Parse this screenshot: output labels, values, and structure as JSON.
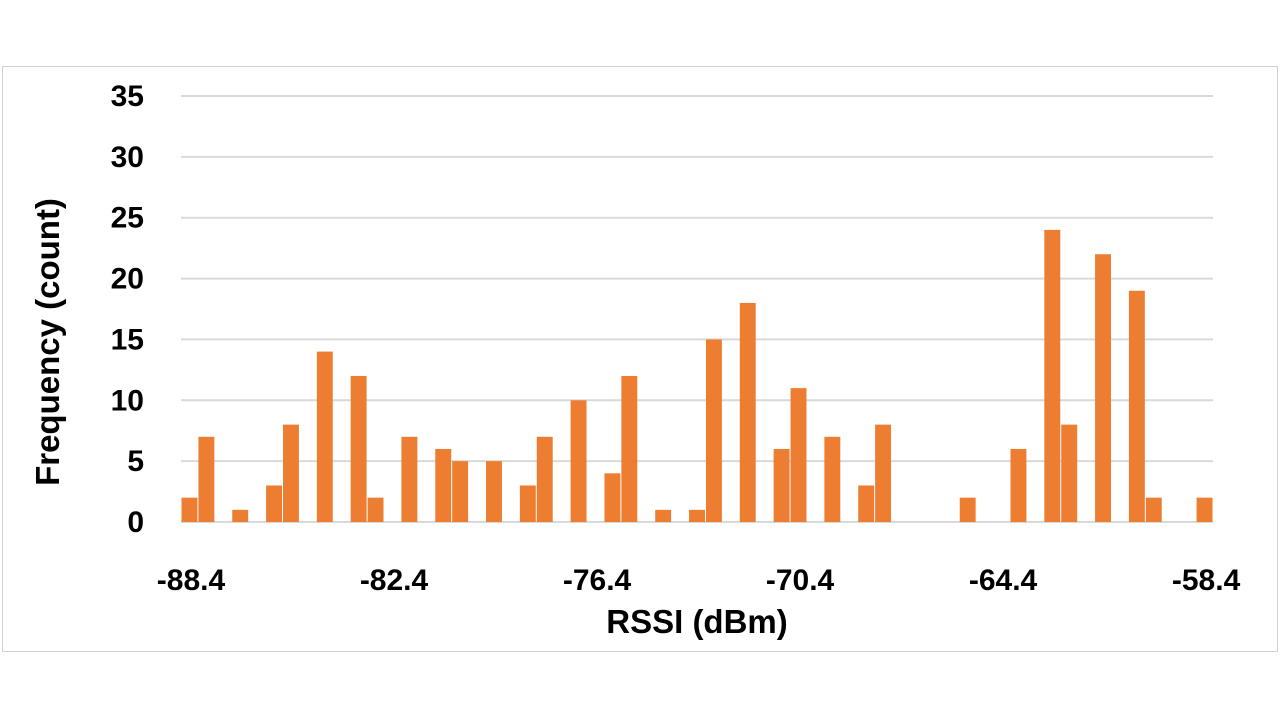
{
  "chart_data": {
    "type": "bar",
    "title": "",
    "xlabel": "RSSI (dBm)",
    "ylabel": "Frequency (count)",
    "ylim": [
      0,
      35
    ],
    "yticks": [
      0,
      5,
      10,
      15,
      20,
      25,
      30,
      35
    ],
    "grid": true,
    "color": "#ED7D31",
    "bin_start": -88.4,
    "bin_width": 0.5,
    "xtick_labels": [
      "-88.4",
      "-82.4",
      "-76.4",
      "-70.4",
      "-64.4",
      "-58.4"
    ],
    "xtick_values": [
      -88.4,
      -82.4,
      -76.4,
      -70.4,
      -64.4,
      -58.4
    ],
    "values": [
      2,
      7,
      0,
      1,
      0,
      3,
      8,
      0,
      14,
      0,
      12,
      2,
      0,
      7,
      0,
      6,
      5,
      0,
      5,
      0,
      3,
      7,
      0,
      10,
      0,
      4,
      12,
      0,
      1,
      0,
      1,
      15,
      0,
      18,
      0,
      6,
      11,
      0,
      7,
      0,
      3,
      8,
      0,
      0,
      0,
      0,
      2,
      0,
      0,
      6,
      0,
      24,
      8,
      0,
      22,
      0,
      19,
      2,
      0,
      0,
      2
    ]
  }
}
